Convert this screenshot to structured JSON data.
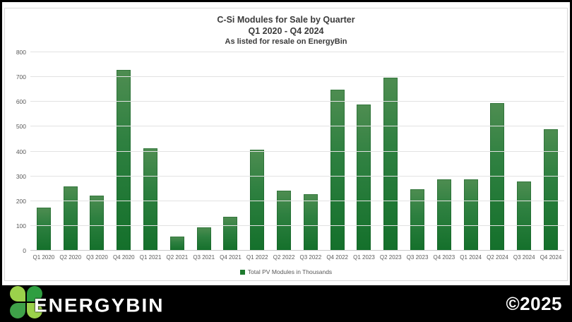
{
  "chart": {
    "title": "C-Si Modules for Sale by Quarter",
    "subtitle": "Q1 2020 - Q4 2024",
    "caption": "As listed for resale on EnergyBin",
    "legend_label": "Total PV Modules in Thousands"
  },
  "chart_data": {
    "type": "bar",
    "title": "C-Si Modules for Sale by Quarter",
    "subtitle": "Q1 2020 - Q4 2024",
    "caption": "As listed for resale on EnergyBin",
    "legend": [
      "Total PV Modules in Thousands"
    ],
    "legend_position": "bottom",
    "grid": true,
    "bar_color": "#1e7a2e",
    "categories": [
      "Q1 2020",
      "Q2 2020",
      "Q3 2020",
      "Q4 2020",
      "Q1 2021",
      "Q2 2021",
      "Q3 2021",
      "Q4 2021",
      "Q1 2022",
      "Q2 2022",
      "Q3 2022",
      "Q4 2022",
      "Q1 2023",
      "Q2 2023",
      "Q3 2023",
      "Q4 2023",
      "Q1 2024",
      "Q2 2024",
      "Q3 2024",
      "Q4 2024"
    ],
    "values": [
      175,
      260,
      222,
      728,
      413,
      57,
      95,
      138,
      407,
      241,
      228,
      650,
      588,
      697,
      249,
      288,
      288,
      596,
      280,
      491
    ],
    "xlabel": "",
    "ylabel": "",
    "ylim": [
      0,
      800
    ],
    "ytick_step": 100,
    "yticks": [
      0,
      100,
      200,
      300,
      400,
      500,
      600,
      700,
      800
    ]
  },
  "footer": {
    "brand": "ENERGYBIN",
    "copyright": "©2025"
  },
  "colors": {
    "bar_gradient_top": "#4e8d51",
    "bar_gradient_bottom": "#14702b",
    "gridline": "#e2e2e2",
    "axis_text": "#595959",
    "title_text": "#3b3b3b",
    "footer_bg": "#000000",
    "leaf_light": "#9bd14b",
    "leaf_dark": "#2f9e41",
    "leaf_mid": "#3fa149"
  }
}
